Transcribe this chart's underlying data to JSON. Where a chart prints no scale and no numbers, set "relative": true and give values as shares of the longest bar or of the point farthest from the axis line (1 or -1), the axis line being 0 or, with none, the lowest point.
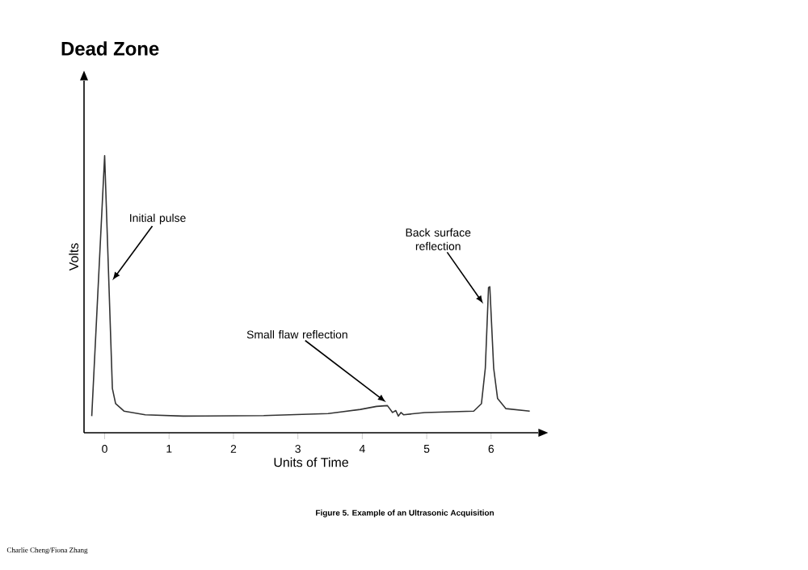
{
  "chart_data": {
    "type": "line",
    "title": "Dead Zone",
    "xlabel": "Units of Time",
    "ylabel": "Volts",
    "relative": true,
    "marker": "none",
    "line_style": "solid",
    "grid": false,
    "xlim": [
      -0.32,
      6.73
    ],
    "xticks": [
      0,
      1,
      2,
      3,
      4,
      5,
      6
    ],
    "series": [
      {
        "color": "#333333",
        "x": [
          -0.2,
          0,
          0.12,
          0.17,
          0.3,
          0.63,
          1.22,
          2.47,
          3.47,
          3.97,
          4.22,
          4.39,
          4.47,
          4.52,
          4.56,
          4.6,
          4.64,
          4.97,
          5.73,
          5.85,
          5.91,
          5.96,
          5.98,
          6.04,
          6.1,
          6.23,
          6.6
        ],
        "values": [
          0.06,
          1.0,
          0.16,
          0.105,
          0.078,
          0.065,
          0.06,
          0.062,
          0.069,
          0.084,
          0.095,
          0.098,
          0.073,
          0.08,
          0.06,
          0.073,
          0.065,
          0.073,
          0.078,
          0.105,
          0.233,
          0.524,
          0.527,
          0.233,
          0.124,
          0.087,
          0.078
        ]
      }
    ],
    "annotations": [
      {
        "text": "Initial pulse",
        "x": 0.12,
        "y": 0.55
      },
      {
        "text": "Back surface reflection",
        "x": 5.88,
        "y": 0.465
      },
      {
        "text": "Small flaw reflection",
        "x": 4.37,
        "y": 0.11
      },
      "Figure 5. Example of an Ultrasonic Acquisition",
      "Charlie Cheng/Fiona Zhang"
    ]
  }
}
